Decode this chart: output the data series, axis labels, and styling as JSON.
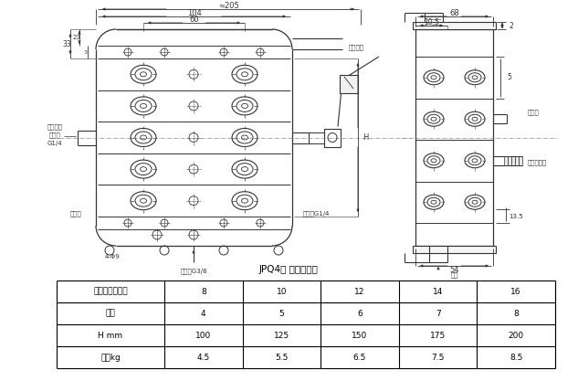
{
  "title": "JPQ4型 型式及尺寸",
  "table_headers": [
    "出油口数（个）",
    "8",
    "10",
    "12",
    "14",
    "16"
  ],
  "table_rows": [
    [
      "片数",
      "4",
      "5",
      "6",
      "7",
      "8"
    ],
    [
      "H mm",
      "100",
      "125",
      "150",
      "175",
      "200"
    ],
    [
      "重量kg",
      "4.5",
      "5.5",
      "6.5",
      "7.5",
      "8.5"
    ]
  ],
  "bg_color": "#ffffff",
  "line_color": "#000000",
  "draw_color": "#333333"
}
